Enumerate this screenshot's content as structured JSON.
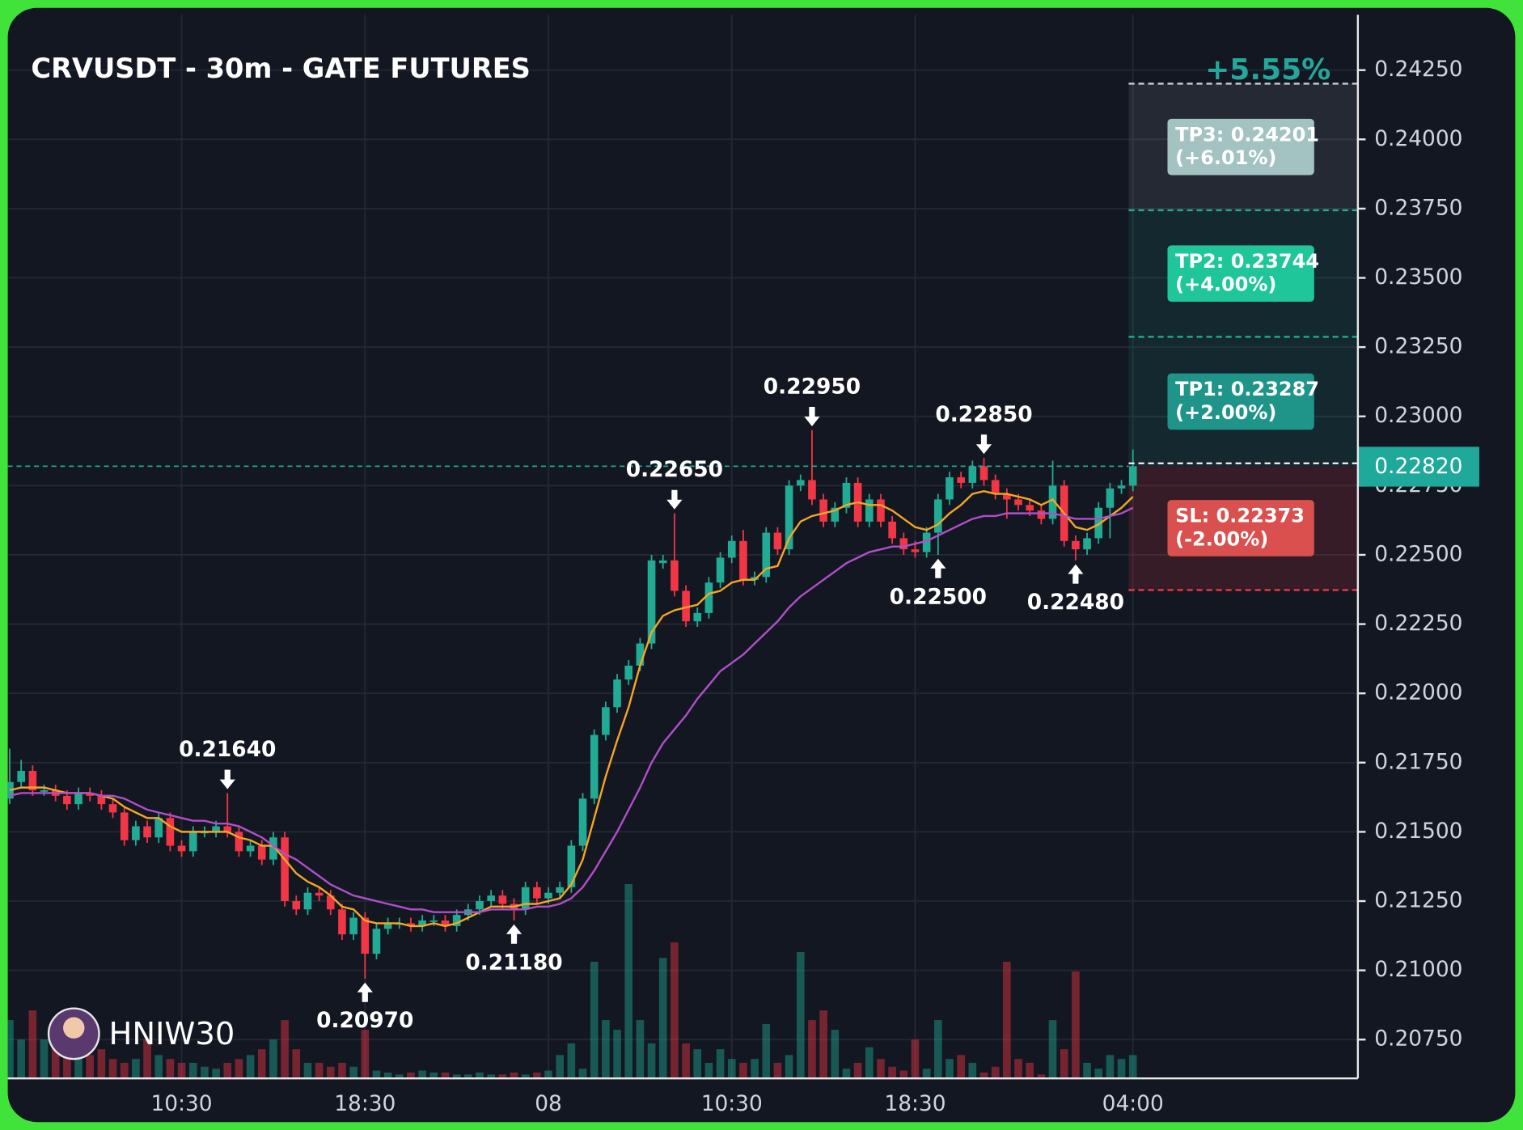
{
  "chart_data": {
    "type": "candlestick",
    "title": "CRVUSDT - 30m - GATE FUTURES",
    "watermark": "HNIW30",
    "change": {
      "value": 5.55,
      "label": "+5.55%"
    },
    "last_price": {
      "value": 0.2282,
      "label": "0.22820"
    },
    "up_color": "#22ab94",
    "down_color": "#f23645",
    "grid": true,
    "ylim": [
      0.2061,
      0.2445
    ],
    "y2lim": [
      0,
      100
    ],
    "yticks": [
      {
        "value": 0.2075,
        "label": "0.20750"
      },
      {
        "value": 0.21,
        "label": "0.21000"
      },
      {
        "value": 0.2125,
        "label": "0.21250"
      },
      {
        "value": 0.215,
        "label": "0.21500"
      },
      {
        "value": 0.2175,
        "label": "0.21750"
      },
      {
        "value": 0.22,
        "label": "0.22000"
      },
      {
        "value": 0.2225,
        "label": "0.22250"
      },
      {
        "value": 0.225,
        "label": "0.22500"
      },
      {
        "value": 0.2275,
        "label": "0.22750"
      },
      {
        "value": 0.23,
        "label": "0.23000"
      },
      {
        "value": 0.2325,
        "label": "0.23250"
      },
      {
        "value": 0.235,
        "label": "0.23500"
      },
      {
        "value": 0.2375,
        "label": "0.23750"
      },
      {
        "value": 0.24,
        "label": "0.24000"
      },
      {
        "value": 0.2425,
        "label": "0.24250"
      }
    ],
    "categories": [
      null,
      null,
      null,
      null,
      null,
      null,
      null,
      null,
      null,
      null,
      null,
      null,
      null,
      null,
      null,
      "10:30",
      null,
      null,
      null,
      null,
      null,
      null,
      null,
      null,
      null,
      null,
      null,
      null,
      null,
      null,
      null,
      "18:30",
      null,
      null,
      null,
      null,
      null,
      null,
      null,
      null,
      null,
      null,
      null,
      null,
      null,
      null,
      null,
      "08",
      null,
      null,
      null,
      null,
      null,
      null,
      null,
      null,
      null,
      null,
      null,
      null,
      null,
      null,
      null,
      "10:30",
      null,
      null,
      null,
      null,
      null,
      null,
      null,
      null,
      null,
      null,
      null,
      null,
      null,
      null,
      null,
      "18:30",
      null,
      null,
      null,
      null,
      null,
      null,
      null,
      null,
      null,
      null,
      null,
      null,
      null,
      null,
      null,
      null,
      null,
      null,
      "04:00"
    ],
    "candles": [
      [
        0.2162,
        0.218,
        0.216,
        0.2168
      ],
      [
        0.2168,
        0.2176,
        0.2166,
        0.2172
      ],
      [
        0.2172,
        0.2174,
        0.2163,
        0.2165
      ],
      [
        0.2165,
        0.2167,
        0.2163,
        0.2165
      ],
      [
        0.2165,
        0.2167,
        0.2161,
        0.2163
      ],
      [
        0.2163,
        0.2165,
        0.2158,
        0.216
      ],
      [
        0.216,
        0.2166,
        0.2158,
        0.2164
      ],
      [
        0.2164,
        0.2166,
        0.2161,
        0.2163
      ],
      [
        0.2163,
        0.2165,
        0.2158,
        0.216
      ],
      [
        0.216,
        0.2162,
        0.2155,
        0.2157
      ],
      [
        0.2157,
        0.2159,
        0.2145,
        0.2147
      ],
      [
        0.2147,
        0.2154,
        0.2145,
        0.2152
      ],
      [
        0.2152,
        0.2154,
        0.2146,
        0.2148
      ],
      [
        0.2148,
        0.2157,
        0.2146,
        0.2155
      ],
      [
        0.2155,
        0.2157,
        0.2143,
        0.2145
      ],
      [
        0.2145,
        0.2147,
        0.2141,
        0.2143
      ],
      [
        0.2143,
        0.2152,
        0.2141,
        0.215
      ],
      [
        0.215,
        0.2152,
        0.2148,
        0.215
      ],
      [
        0.215,
        0.2154,
        0.2148,
        0.2152
      ],
      [
        0.2152,
        0.2164,
        0.2148,
        0.215
      ],
      [
        0.215,
        0.2152,
        0.2141,
        0.2143
      ],
      [
        0.2143,
        0.2147,
        0.2141,
        0.2145
      ],
      [
        0.2145,
        0.2147,
        0.2138,
        0.214
      ],
      [
        0.214,
        0.215,
        0.2138,
        0.2148
      ],
      [
        0.2148,
        0.215,
        0.2123,
        0.2125
      ],
      [
        0.2125,
        0.2127,
        0.212,
        0.2122
      ],
      [
        0.2122,
        0.213,
        0.212,
        0.2128
      ],
      [
        0.2128,
        0.213,
        0.2125,
        0.2127
      ],
      [
        0.2127,
        0.2129,
        0.212,
        0.2122
      ],
      [
        0.2122,
        0.2124,
        0.2111,
        0.2113
      ],
      [
        0.2113,
        0.2121,
        0.2111,
        0.2119
      ],
      [
        0.2119,
        0.2121,
        0.2097,
        0.2106
      ],
      [
        0.2106,
        0.2117,
        0.2104,
        0.2115
      ],
      [
        0.2115,
        0.2119,
        0.2113,
        0.2117
      ],
      [
        0.2117,
        0.2119,
        0.2115,
        0.2117
      ],
      [
        0.2117,
        0.2119,
        0.2114,
        0.2116
      ],
      [
        0.2116,
        0.212,
        0.2114,
        0.2118
      ],
      [
        0.2118,
        0.212,
        0.2116,
        0.2118
      ],
      [
        0.2118,
        0.212,
        0.2114,
        0.2116
      ],
      [
        0.2116,
        0.2122,
        0.2114,
        0.212
      ],
      [
        0.212,
        0.2124,
        0.2118,
        0.2122
      ],
      [
        0.2122,
        0.2127,
        0.212,
        0.2125
      ],
      [
        0.2125,
        0.2129,
        0.2123,
        0.2127
      ],
      [
        0.2127,
        0.2129,
        0.2122,
        0.2124
      ],
      [
        0.2124,
        0.2126,
        0.2118,
        0.2122
      ],
      [
        0.2122,
        0.2132,
        0.212,
        0.213
      ],
      [
        0.213,
        0.2132,
        0.2124,
        0.2126
      ],
      [
        0.2126,
        0.213,
        0.2124,
        0.2128
      ],
      [
        0.2128,
        0.2132,
        0.2126,
        0.213
      ],
      [
        0.213,
        0.2147,
        0.2128,
        0.2145
      ],
      [
        0.2145,
        0.2164,
        0.2143,
        0.2162
      ],
      [
        0.2162,
        0.2187,
        0.216,
        0.2185
      ],
      [
        0.2185,
        0.2197,
        0.2183,
        0.2195
      ],
      [
        0.2195,
        0.2207,
        0.2193,
        0.2205
      ],
      [
        0.2205,
        0.2212,
        0.2203,
        0.221
      ],
      [
        0.221,
        0.222,
        0.2208,
        0.2218
      ],
      [
        0.2218,
        0.225,
        0.2216,
        0.2248
      ],
      [
        0.2247,
        0.225,
        0.2245,
        0.2248
      ],
      [
        0.2248,
        0.2265,
        0.2235,
        0.2237
      ],
      [
        0.2237,
        0.2239,
        0.2224,
        0.2226
      ],
      [
        0.2226,
        0.2231,
        0.2224,
        0.2229
      ],
      [
        0.2229,
        0.2242,
        0.2227,
        0.224
      ],
      [
        0.224,
        0.2251,
        0.2238,
        0.2249
      ],
      [
        0.2249,
        0.2257,
        0.2247,
        0.2255
      ],
      [
        0.2255,
        0.2259,
        0.2239,
        0.2241
      ],
      [
        0.2241,
        0.2244,
        0.2239,
        0.2242
      ],
      [
        0.2242,
        0.226,
        0.224,
        0.2258
      ],
      [
        0.2258,
        0.226,
        0.225,
        0.2252
      ],
      [
        0.2252,
        0.2277,
        0.225,
        0.2275
      ],
      [
        0.2275,
        0.2279,
        0.2273,
        0.2277
      ],
      [
        0.2277,
        0.2295,
        0.2268,
        0.227
      ],
      [
        0.227,
        0.2272,
        0.226,
        0.2262
      ],
      [
        0.2262,
        0.2269,
        0.226,
        0.2267
      ],
      [
        0.2267,
        0.2278,
        0.2265,
        0.2276
      ],
      [
        0.2276,
        0.2278,
        0.226,
        0.2262
      ],
      [
        0.2262,
        0.2272,
        0.226,
        0.227
      ],
      [
        0.227,
        0.2272,
        0.226,
        0.2262
      ],
      [
        0.2262,
        0.2264,
        0.2254,
        0.2256
      ],
      [
        0.2256,
        0.2258,
        0.225,
        0.2252
      ],
      [
        0.2252,
        0.2255,
        0.2249,
        0.2251
      ],
      [
        0.2251,
        0.226,
        0.2249,
        0.2258
      ],
      [
        0.2258,
        0.2272,
        0.225,
        0.227
      ],
      [
        0.227,
        0.228,
        0.2268,
        0.2278
      ],
      [
        0.2278,
        0.228,
        0.2274,
        0.2276
      ],
      [
        0.2276,
        0.2284,
        0.2274,
        0.2282
      ],
      [
        0.2282,
        0.2285,
        0.2275,
        0.2277
      ],
      [
        0.2277,
        0.2279,
        0.227,
        0.2272
      ],
      [
        0.2272,
        0.2274,
        0.2263,
        0.227
      ],
      [
        0.227,
        0.2272,
        0.2266,
        0.2268
      ],
      [
        0.2268,
        0.227,
        0.2264,
        0.2266
      ],
      [
        0.2266,
        0.2268,
        0.2261,
        0.2263
      ],
      [
        0.2263,
        0.2284,
        0.2261,
        0.2275
      ],
      [
        0.2275,
        0.2277,
        0.2253,
        0.2255
      ],
      [
        0.2255,
        0.2257,
        0.2248,
        0.2252
      ],
      [
        0.2252,
        0.2258,
        0.225,
        0.2256
      ],
      [
        0.2256,
        0.2269,
        0.2254,
        0.2267
      ],
      [
        0.2267,
        0.2276,
        0.2256,
        0.2274
      ],
      [
        0.2274,
        0.2277,
        0.2272,
        0.2275
      ],
      [
        0.2275,
        0.2288,
        0.2273,
        0.2282
      ]
    ],
    "volumes": [
      30,
      20,
      35,
      20,
      30,
      15,
      10,
      12,
      15,
      10,
      8,
      10,
      20,
      12,
      10,
      8,
      8,
      6,
      5,
      8,
      10,
      12,
      15,
      20,
      30,
      15,
      8,
      8,
      6,
      8,
      6,
      25,
      4,
      3,
      2,
      3,
      4,
      3,
      3,
      2,
      2,
      3,
      2,
      2,
      3,
      2,
      3,
      4,
      12,
      18,
      5,
      60,
      30,
      25,
      100,
      30,
      18,
      62,
      70,
      18,
      15,
      8,
      15,
      10,
      8,
      10,
      28,
      8,
      12,
      65,
      30,
      35,
      25,
      5,
      8,
      16,
      10,
      6,
      4,
      20,
      5,
      30,
      10,
      12,
      8,
      3,
      6,
      60,
      10,
      8,
      2,
      30,
      15,
      55,
      8,
      5,
      12,
      10,
      12
    ],
    "lines": [
      {
        "color": "#f5a623",
        "values": [
          0.2165,
          0.2166,
          0.2166,
          0.2166,
          0.2165,
          0.2164,
          0.2164,
          0.2164,
          0.2163,
          0.2162,
          0.2159,
          0.2157,
          0.2155,
          0.2155,
          0.2152,
          0.215,
          0.215,
          0.215,
          0.215,
          0.215,
          0.2148,
          0.2147,
          0.2145,
          0.2145,
          0.214,
          0.2135,
          0.2132,
          0.213,
          0.2127,
          0.2123,
          0.2122,
          0.2118,
          0.2117,
          0.2117,
          0.2117,
          0.2116,
          0.2116,
          0.2117,
          0.2116,
          0.2117,
          0.2119,
          0.2121,
          0.2123,
          0.2123,
          0.2123,
          0.2124,
          0.2124,
          0.2125,
          0.2126,
          0.2131,
          0.214,
          0.2155,
          0.217,
          0.2183,
          0.2195,
          0.221,
          0.2222,
          0.2228,
          0.223,
          0.2231,
          0.2232,
          0.2236,
          0.2237,
          0.224,
          0.2241,
          0.2241,
          0.2245,
          0.2246,
          0.2256,
          0.2262,
          0.2264,
          0.2265,
          0.2266,
          0.2268,
          0.2269,
          0.2268,
          0.2268,
          0.2266,
          0.2263,
          0.226,
          0.2259,
          0.2261,
          0.2265,
          0.2268,
          0.2272,
          0.2273,
          0.2272,
          0.2272,
          0.2271,
          0.227,
          0.2268,
          0.227,
          0.2265,
          0.226,
          0.2259,
          0.2261,
          0.2264,
          0.2267,
          0.2271
        ]
      },
      {
        "color": "#b04fc9",
        "values": [
          0.2163,
          0.2164,
          0.2164,
          0.2164,
          0.2164,
          0.2164,
          0.2164,
          0.2164,
          0.2163,
          0.2163,
          0.2162,
          0.216,
          0.2158,
          0.2157,
          0.2156,
          0.2155,
          0.2154,
          0.2154,
          0.2153,
          0.2153,
          0.2152,
          0.215,
          0.2148,
          0.2145,
          0.2142,
          0.214,
          0.2137,
          0.2134,
          0.2131,
          0.2129,
          0.2127,
          0.2126,
          0.2125,
          0.2124,
          0.2123,
          0.2122,
          0.2122,
          0.2121,
          0.2121,
          0.2121,
          0.2121,
          0.2121,
          0.2122,
          0.2122,
          0.2122,
          0.2122,
          0.2123,
          0.2123,
          0.2124,
          0.2126,
          0.213,
          0.2136,
          0.2143,
          0.215,
          0.2158,
          0.2166,
          0.2175,
          0.2182,
          0.2187,
          0.2192,
          0.2198,
          0.2203,
          0.2208,
          0.2211,
          0.2214,
          0.2218,
          0.2222,
          0.2226,
          0.2231,
          0.2235,
          0.2238,
          0.2241,
          0.2244,
          0.2247,
          0.2249,
          0.2251,
          0.2252,
          0.2253,
          0.2253,
          0.2254,
          0.2255,
          0.2257,
          0.2259,
          0.2261,
          0.2263,
          0.2264,
          0.2264,
          0.2265,
          0.2265,
          0.2265,
          0.2265,
          0.2265,
          0.2264,
          0.2263,
          0.2263,
          0.2263,
          0.2264,
          0.2265,
          0.2267
        ]
      }
    ],
    "annotations": [
      {
        "at": 19,
        "side": "high",
        "value": 0.2164,
        "label": "0.21640"
      },
      {
        "at": 31,
        "side": "low",
        "value": 0.2097,
        "label": "0.20970"
      },
      {
        "at": 44,
        "side": "low",
        "value": 0.2118,
        "label": "0.21180"
      },
      {
        "at": 58,
        "side": "high",
        "value": 0.2265,
        "label": "0.22650"
      },
      {
        "at": 70,
        "side": "high",
        "value": 0.2295,
        "label": "0.22950"
      },
      {
        "at": 81,
        "side": "low",
        "value": 0.225,
        "label": "0.22500"
      },
      {
        "at": 85,
        "side": "high",
        "value": 0.2285,
        "label": "0.22850"
      },
      {
        "at": 93,
        "side": "low",
        "value": 0.2248,
        "label": "0.22480"
      }
    ],
    "levels": [
      {
        "label": "TP3: 0.24201",
        "pct": "(+6.01%)",
        "value": 0.24201,
        "color": "#a3c2c2",
        "line_color": "#c8ccd4",
        "zone_color": "rgba(200,210,220,0.10)"
      },
      {
        "label": "TP2: 0.23744",
        "pct": "(+4.00%)",
        "value": 0.23744,
        "color": "#1fc69a",
        "line_color": "#22ab94",
        "zone_color": "rgba(34,171,148,0.12)"
      },
      {
        "label": "TP1: 0.23287",
        "pct": "(+2.00%)",
        "value": 0.23287,
        "color": "#1f9488",
        "line_color": "#22ab94",
        "zone_color": "rgba(34,171,148,0.12)"
      },
      {
        "label": "SL: 0.22373",
        "pct": "(-2.00%)",
        "value": 0.22373,
        "color": "#d9504e",
        "line_color": "#f23645",
        "zone_color": "rgba(242,54,69,0.16)"
      }
    ]
  }
}
